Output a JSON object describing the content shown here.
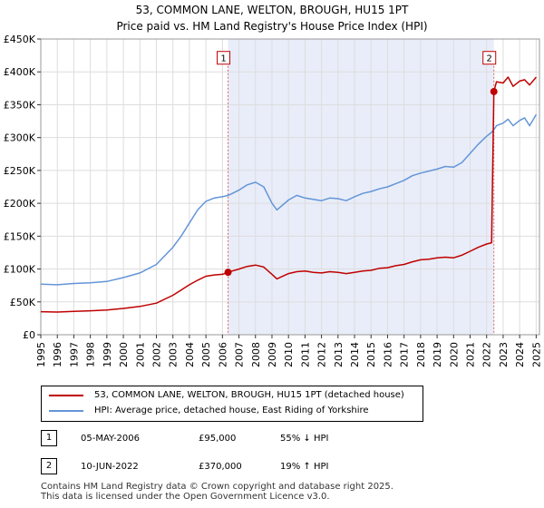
{
  "chart_data": {
    "type": "line",
    "title": "53, COMMON LANE, WELTON, BROUGH, HU15 1PT",
    "subtitle": "Price paid vs. HM Land Registry's House Price Index (HPI)",
    "xlim": [
      1995,
      2025.2
    ],
    "ylim": [
      0,
      450000
    ],
    "x_ticks": [
      1995,
      1996,
      1997,
      1998,
      1999,
      2000,
      2001,
      2002,
      2003,
      2004,
      2005,
      2006,
      2007,
      2008,
      2009,
      2010,
      2011,
      2012,
      2013,
      2014,
      2015,
      2016,
      2017,
      2018,
      2019,
      2020,
      2021,
      2022,
      2023,
      2024,
      2025
    ],
    "y_ticks": [
      0,
      50000,
      100000,
      150000,
      200000,
      250000,
      300000,
      350000,
      400000,
      450000
    ],
    "y_tick_labels": [
      "£0",
      "£50K",
      "£100K",
      "£150K",
      "£200K",
      "£250K",
      "£300K",
      "£350K",
      "£400K",
      "£450K"
    ],
    "grid": true,
    "shaded_period": [
      2006.34,
      2022.44
    ],
    "series": [
      {
        "name": "53, COMMON LANE, WELTON, BROUGH, HU15 1PT (detached house)",
        "color": "#c00000",
        "x": [
          1995,
          1996,
          1997,
          1998,
          1999,
          2000,
          2001,
          2002,
          2003,
          2003.5,
          2004,
          2004.5,
          2005,
          2005.5,
          2006,
          2006.34,
          2006.6,
          2007,
          2007.5,
          2008,
          2008.5,
          2009,
          2009.3,
          2010,
          2010.5,
          2011,
          2011.5,
          2012,
          2012.5,
          2013,
          2013.5,
          2014,
          2014.5,
          2015,
          2015.5,
          2016,
          2016.5,
          2017,
          2017.5,
          2018,
          2018.5,
          2019,
          2019.5,
          2020,
          2020.5,
          2021,
          2021.5,
          2022,
          2022.3,
          2022.44,
          2022.6,
          2023,
          2023.3,
          2023.6,
          2024,
          2024.3,
          2024.6,
          2025
        ],
        "y": [
          35000,
          34500,
          35500,
          36500,
          37500,
          40000,
          43000,
          48000,
          60000,
          68000,
          76000,
          83000,
          89000,
          91000,
          92000,
          95000,
          97000,
          100000,
          104000,
          106000,
          103000,
          92000,
          85000,
          93000,
          96000,
          97000,
          95000,
          94000,
          96000,
          95000,
          93000,
          95000,
          97000,
          98000,
          101000,
          102000,
          105000,
          107000,
          111000,
          114000,
          115000,
          117000,
          118000,
          117000,
          121000,
          127000,
          133000,
          138000,
          140000,
          370000,
          385000,
          383000,
          392000,
          378000,
          386000,
          388000,
          380000,
          392000
        ]
      },
      {
        "name": "HPI: Average price, detached house, East Riding of Yorkshire",
        "color": "#6495d8",
        "x": [
          1995,
          1996,
          1997,
          1998,
          1999,
          2000,
          2001,
          2002,
          2003,
          2003.5,
          2004,
          2004.5,
          2005,
          2005.5,
          2006,
          2006.34,
          2006.6,
          2007,
          2007.5,
          2008,
          2008.5,
          2009,
          2009.3,
          2010,
          2010.5,
          2011,
          2011.5,
          2012,
          2012.5,
          2013,
          2013.5,
          2014,
          2014.5,
          2015,
          2015.5,
          2016,
          2016.5,
          2017,
          2017.5,
          2018,
          2018.5,
          2019,
          2019.5,
          2020,
          2020.5,
          2021,
          2021.5,
          2022,
          2022.3,
          2022.44,
          2022.6,
          2023,
          2023.3,
          2023.6,
          2024,
          2024.3,
          2024.6,
          2025
        ],
        "y": [
          77000,
          76000,
          78000,
          79000,
          81000,
          87000,
          94000,
          107000,
          133000,
          150000,
          170000,
          190000,
          203000,
          208000,
          210000,
          212000,
          215000,
          220000,
          228000,
          232000,
          225000,
          200000,
          190000,
          205000,
          212000,
          208000,
          206000,
          204000,
          208000,
          207000,
          204000,
          210000,
          215000,
          218000,
          222000,
          225000,
          230000,
          235000,
          242000,
          246000,
          249000,
          252000,
          256000,
          255000,
          262000,
          276000,
          290000,
          302000,
          308000,
          312000,
          318000,
          322000,
          328000,
          318000,
          326000,
          330000,
          318000,
          335000
        ]
      }
    ],
    "annotations": [
      {
        "label": "1",
        "x": 2006.34,
        "y": 95000,
        "box_y": 420000
      },
      {
        "label": "2",
        "x": 2022.44,
        "y": 370000,
        "box_y": 420000
      }
    ]
  },
  "legend": {
    "items": [
      {
        "label": "53, COMMON LANE, WELTON, BROUGH, HU15 1PT (detached house)",
        "color": "#c00000"
      },
      {
        "label": "HPI: Average price, detached house, East Riding of Yorkshire",
        "color": "#6495d8"
      }
    ]
  },
  "transactions": [
    {
      "num": "1",
      "date": "05-MAY-2006",
      "price": "£95,000",
      "hpi": "55% ↓ HPI"
    },
    {
      "num": "2",
      "date": "10-JUN-2022",
      "price": "£370,000",
      "hpi": "19% ↑ HPI"
    }
  ],
  "footer": {
    "line1": "Contains HM Land Registry data © Crown copyright and database right 2025.",
    "line2": "This data is licensed under the Open Government Licence v3.0."
  }
}
